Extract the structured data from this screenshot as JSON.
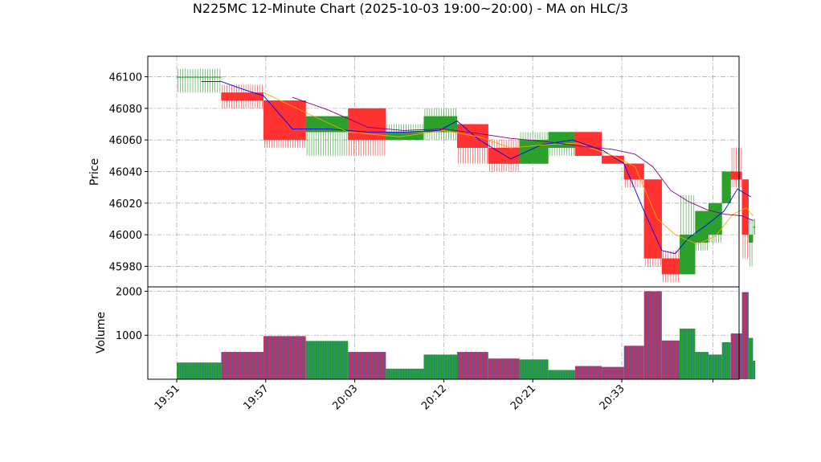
{
  "chart_data": {
    "type": "candlestick",
    "title": "N225MC 12-Minute Chart (2025-10-03 19:00~20:00) - MA on HLC/3",
    "price_axis": {
      "ylabel": "Price",
      "ylim": [
        45967,
        46113
      ],
      "ticks": [
        45980,
        46000,
        46020,
        46040,
        46060,
        46080,
        46100
      ],
      "grid": true
    },
    "volume_axis": {
      "ylabel": "Volume",
      "ylim": [
        0,
        2100
      ],
      "ticks": [
        1000,
        2000
      ],
      "grid": true
    },
    "x_axis": {
      "tick_labels": [
        "19:51",
        "19:57",
        "20:03",
        "20:12",
        "20:21",
        "20:33"
      ],
      "tick_slots": [
        0,
        2,
        4,
        6,
        8,
        10
      ]
    },
    "colors": {
      "up": "#2ca02c",
      "down": "#ff3333",
      "volume_up": "#1f77b4",
      "volume_down": "#b03060",
      "ma_short": "#0000ff",
      "ma_mid": "#ffa500",
      "ma_long": "#800080"
    },
    "candles": [
      {
        "s": 0.0,
        "e": 1.0,
        "o": 46100,
        "h": 46105,
        "l": 46090,
        "c": 46100,
        "v": 380
      },
      {
        "s": 1.0,
        "e": 1.95,
        "o": 46090,
        "h": 46095,
        "l": 46080,
        "c": 46085,
        "v": 620
      },
      {
        "s": 1.95,
        "e": 2.9,
        "o": 46085,
        "h": 46085,
        "l": 46055,
        "c": 46060,
        "v": 980
      },
      {
        "s": 2.9,
        "e": 3.85,
        "o": 46065,
        "h": 46075,
        "l": 46050,
        "c": 46075,
        "v": 870
      },
      {
        "s": 3.85,
        "e": 4.7,
        "o": 46080,
        "h": 46080,
        "l": 46050,
        "c": 46060,
        "v": 620
      },
      {
        "s": 4.7,
        "e": 5.55,
        "o": 46060,
        "h": 46070,
        "l": 46060,
        "c": 46065,
        "v": 240
      },
      {
        "s": 5.55,
        "e": 6.3,
        "o": 46065,
        "h": 46080,
        "l": 46060,
        "c": 46075,
        "v": 560
      },
      {
        "s": 6.3,
        "e": 7.0,
        "o": 46070,
        "h": 46070,
        "l": 46045,
        "c": 46055,
        "v": 620
      },
      {
        "s": 7.0,
        "e": 7.7,
        "o": 46055,
        "h": 46060,
        "l": 46040,
        "c": 46045,
        "v": 470
      },
      {
        "s": 7.7,
        "e": 8.35,
        "o": 46045,
        "h": 46065,
        "l": 46045,
        "c": 46060,
        "v": 450
      },
      {
        "s": 8.35,
        "e": 8.95,
        "o": 46055,
        "h": 46065,
        "l": 46050,
        "c": 46065,
        "v": 210
      },
      {
        "s": 8.95,
        "e": 9.55,
        "o": 46065,
        "h": 46065,
        "l": 46050,
        "c": 46050,
        "v": 300
      },
      {
        "s": 9.55,
        "e": 10.05,
        "o": 46050,
        "h": 46050,
        "l": 46045,
        "c": 46045,
        "v": 280
      },
      {
        "s": 10.05,
        "e": 10.5,
        "o": 46045,
        "h": 46045,
        "l": 46030,
        "c": 46035,
        "v": 760
      },
      {
        "s": 10.5,
        "e": 10.9,
        "o": 46035,
        "h": 46035,
        "l": 45980,
        "c": 45985,
        "v": 2000
      },
      {
        "s": 10.9,
        "e": 11.3,
        "o": 45985,
        "h": 45990,
        "l": 45970,
        "c": 45975,
        "v": 880
      },
      {
        "s": 11.3,
        "e": 11.65,
        "o": 45975,
        "h": 46025,
        "l": 45975,
        "c": 46000,
        "v": 1150
      },
      {
        "s": 11.65,
        "e": 11.95,
        "o": 45995,
        "h": 46015,
        "l": 45990,
        "c": 46015,
        "v": 620
      },
      {
        "s": 11.95,
        "e": 12.25,
        "o": 46000,
        "h": 46020,
        "l": 45995,
        "c": 46020,
        "v": 560
      },
      {
        "s": 12.25,
        "e": 12.45,
        "o": 46020,
        "h": 46040,
        "l": 46020,
        "c": 46040,
        "v": 840
      },
      {
        "s": 12.45,
        "e": 12.7,
        "o": 46040,
        "h": 46055,
        "l": 46030,
        "c": 46035,
        "v": 1040
      },
      {
        "s": 12.7,
        "e": 12.85,
        "o": 46035,
        "h": 46035,
        "l": 45985,
        "c": 46000,
        "v": 1980
      },
      {
        "s": 12.85,
        "e": 12.95,
        "o": 45995,
        "h": 46010,
        "l": 45980,
        "c": 46000,
        "v": 940
      },
      {
        "s": 12.95,
        "e": 13.0,
        "o": 46005,
        "h": 46010,
        "l": 46000,
        "c": 46005,
        "v": 420
      }
    ],
    "series": [
      {
        "color": "#0000ff",
        "x": [
          0.55,
          1.0,
          1.5,
          1.95,
          2.6,
          3.4,
          4.3,
          5.1,
          5.9,
          6.3,
          6.8,
          7.5,
          8.2,
          8.9,
          9.6,
          10.05,
          10.5,
          10.9,
          11.2,
          11.5,
          11.9,
          12.3,
          12.6,
          12.9
        ],
        "y": [
          46097,
          46097,
          46092,
          46088,
          46067,
          46067,
          46065,
          46065,
          46066,
          46072,
          46060,
          46048,
          46057,
          46060,
          46053,
          46045,
          46015,
          45990,
          45988,
          45998,
          46006,
          46015,
          46029,
          46024
        ]
      },
      {
        "color": "#ffa500",
        "x": [
          1.95,
          3.0,
          3.85,
          5.0,
          6.0,
          6.8,
          7.5,
          8.3,
          9.0,
          9.8,
          10.3,
          10.8,
          11.2,
          11.7,
          12.1,
          12.5,
          12.8,
          12.95
        ],
        "y": [
          46090,
          46076,
          46065,
          46062,
          46066,
          46062,
          46055,
          46057,
          46058,
          46050,
          46043,
          46010,
          46000,
          45994,
          45999,
          46013,
          46017,
          46012
        ]
      },
      {
        "color": "#800080",
        "x": [
          2.6,
          3.4,
          4.3,
          5.1,
          6.0,
          6.8,
          7.5,
          8.3,
          9.1,
          9.8,
          10.3,
          10.7,
          11.1,
          11.5,
          11.9,
          12.3,
          12.7,
          12.95
        ],
        "y": [
          46087,
          46079,
          46068,
          46066,
          46067,
          46064,
          46061,
          46059,
          46056,
          46054,
          46051,
          46043,
          46028,
          46021,
          46016,
          46013,
          46012,
          46009
        ]
      }
    ]
  }
}
